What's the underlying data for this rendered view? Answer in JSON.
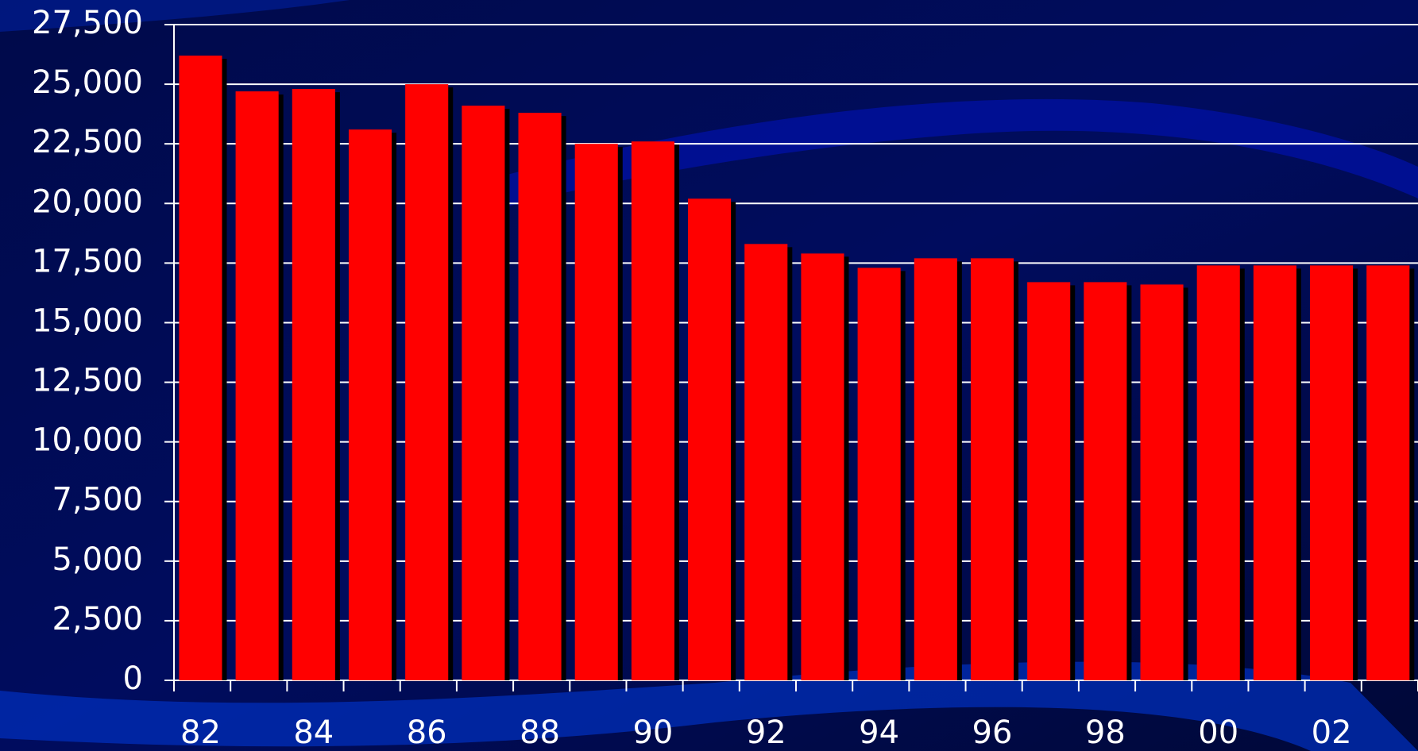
{
  "chart_data": {
    "type": "bar",
    "categories": [
      "82",
      null,
      "84",
      null,
      "86",
      null,
      "88",
      null,
      "90",
      null,
      "92",
      null,
      "94",
      null,
      "96",
      null,
      "98",
      null,
      "00",
      null,
      "02",
      null
    ],
    "values": [
      26200,
      24700,
      24800,
      23100,
      25000,
      24100,
      23800,
      22500,
      22600,
      20200,
      18300,
      17900,
      17300,
      17700,
      17700,
      16700,
      16700,
      16600,
      17400,
      17400,
      17400,
      17400
    ],
    "color": "#ff0000",
    "ylim": [
      0,
      27500
    ],
    "yticks": [
      0,
      {
        "value": 2500,
        "label": "2,500"
      },
      {
        "value": 5000,
        "label": "5,000"
      },
      {
        "value": 7500,
        "label": "7,500"
      },
      {
        "value": 10000,
        "label": "10,000"
      },
      {
        "value": 12500,
        "label": "12,500"
      },
      {
        "value": 15000,
        "label": "15,000"
      },
      {
        "value": 17500,
        "label": "17,500"
      },
      {
        "value": 20000,
        "label": "20,000"
      },
      {
        "value": 22500,
        "label": "22,500"
      },
      {
        "value": 25000,
        "label": "25,000"
      },
      {
        "value": 27500,
        "label": "27,500"
      }
    ],
    "grid": true
  }
}
